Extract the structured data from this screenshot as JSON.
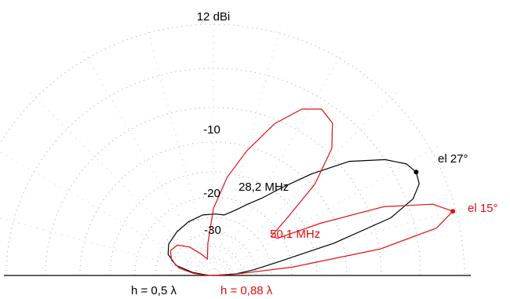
{
  "chart_data": {
    "type": "polar",
    "title": "12 dBi",
    "ring_labels": [
      "-10",
      "-20",
      "-30"
    ],
    "series": [
      {
        "name": "28,2 MHz",
        "color": "#000000",
        "peak_label": "el 27°",
        "height_label": "h = 0,5 λ",
        "shape": [
          [
            0.0,
            0.0
          ],
          [
            4.0,
            0.1
          ],
          [
            8.0,
            0.18
          ],
          [
            12.0,
            0.3
          ],
          [
            15.0,
            0.55
          ],
          [
            18.0,
            0.82
          ],
          [
            21.0,
            0.94
          ],
          [
            24.0,
            0.99
          ],
          [
            27.0,
            1.0
          ],
          [
            30.0,
            0.98
          ],
          [
            34.0,
            0.91
          ],
          [
            40.0,
            0.78
          ],
          [
            46.0,
            0.62
          ],
          [
            52.0,
            0.49
          ],
          [
            58.0,
            0.4
          ],
          [
            64.0,
            0.35
          ],
          [
            72.0,
            0.3
          ],
          [
            80.0,
            0.27
          ],
          [
            88.0,
            0.27
          ],
          [
            100.0,
            0.27
          ],
          [
            115.0,
            0.26
          ],
          [
            130.0,
            0.25
          ],
          [
            145.0,
            0.24
          ],
          [
            155.0,
            0.22
          ],
          [
            165.0,
            0.17
          ],
          [
            172.0,
            0.09
          ],
          [
            178.0,
            0.02
          ],
          [
            180.0,
            0.0
          ]
        ]
      },
      {
        "name": "50,1 MHz",
        "color": "#e01010",
        "peak_label": "el 15°",
        "height_label": "h = 0,88 λ",
        "shape": [
          [
            0.0,
            0.0
          ],
          [
            3.0,
            0.08
          ],
          [
            6.0,
            0.32
          ],
          [
            9.0,
            0.68
          ],
          [
            12.0,
            0.92
          ],
          [
            15.0,
            1.0
          ],
          [
            18.0,
            0.93
          ],
          [
            22.0,
            0.74
          ],
          [
            26.0,
            0.48
          ],
          [
            30.0,
            0.3
          ],
          [
            34.0,
            0.28
          ],
          [
            38.0,
            0.38
          ],
          [
            42.0,
            0.55
          ],
          [
            47.0,
            0.7
          ],
          [
            52.0,
            0.78
          ],
          [
            57.0,
            0.8
          ],
          [
            62.0,
            0.76
          ],
          [
            68.0,
            0.66
          ],
          [
            75.0,
            0.52
          ],
          [
            82.0,
            0.4
          ],
          [
            90.0,
            0.27
          ],
          [
            100.0,
            0.13
          ],
          [
            110.0,
            0.07
          ],
          [
            120.0,
            0.1
          ],
          [
            130.0,
            0.15
          ],
          [
            140.0,
            0.19
          ],
          [
            150.0,
            0.2
          ],
          [
            160.0,
            0.18
          ],
          [
            168.0,
            0.14
          ],
          [
            174.0,
            0.08
          ],
          [
            178.0,
            0.03
          ],
          [
            180.0,
            0.0
          ]
        ]
      }
    ]
  }
}
